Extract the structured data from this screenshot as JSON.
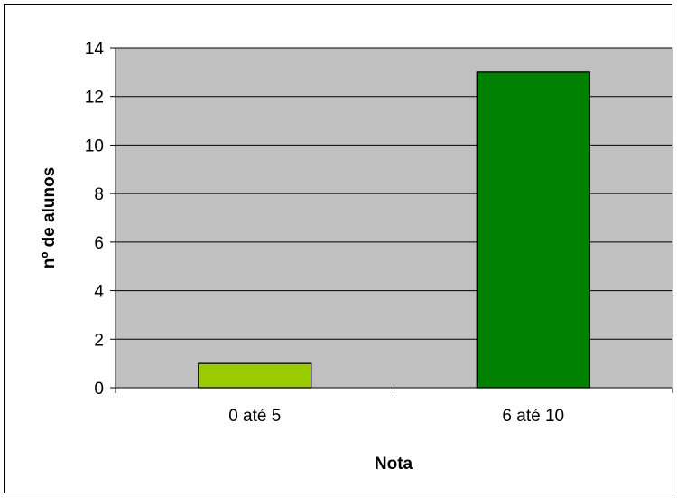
{
  "chart_data": {
    "type": "bar",
    "title": "",
    "xlabel": "Nota",
    "ylabel": "nº de alunos",
    "categories": [
      "0 até 5",
      "6 até 10"
    ],
    "values": [
      1,
      13
    ],
    "ylim": [
      0,
      14
    ],
    "yticks": [
      0,
      2,
      4,
      6,
      8,
      10,
      12,
      14
    ],
    "bar_colors": [
      "#99cc00",
      "#008000"
    ],
    "plot_background": "#c0c0c0",
    "grid": true,
    "legend": "none"
  }
}
